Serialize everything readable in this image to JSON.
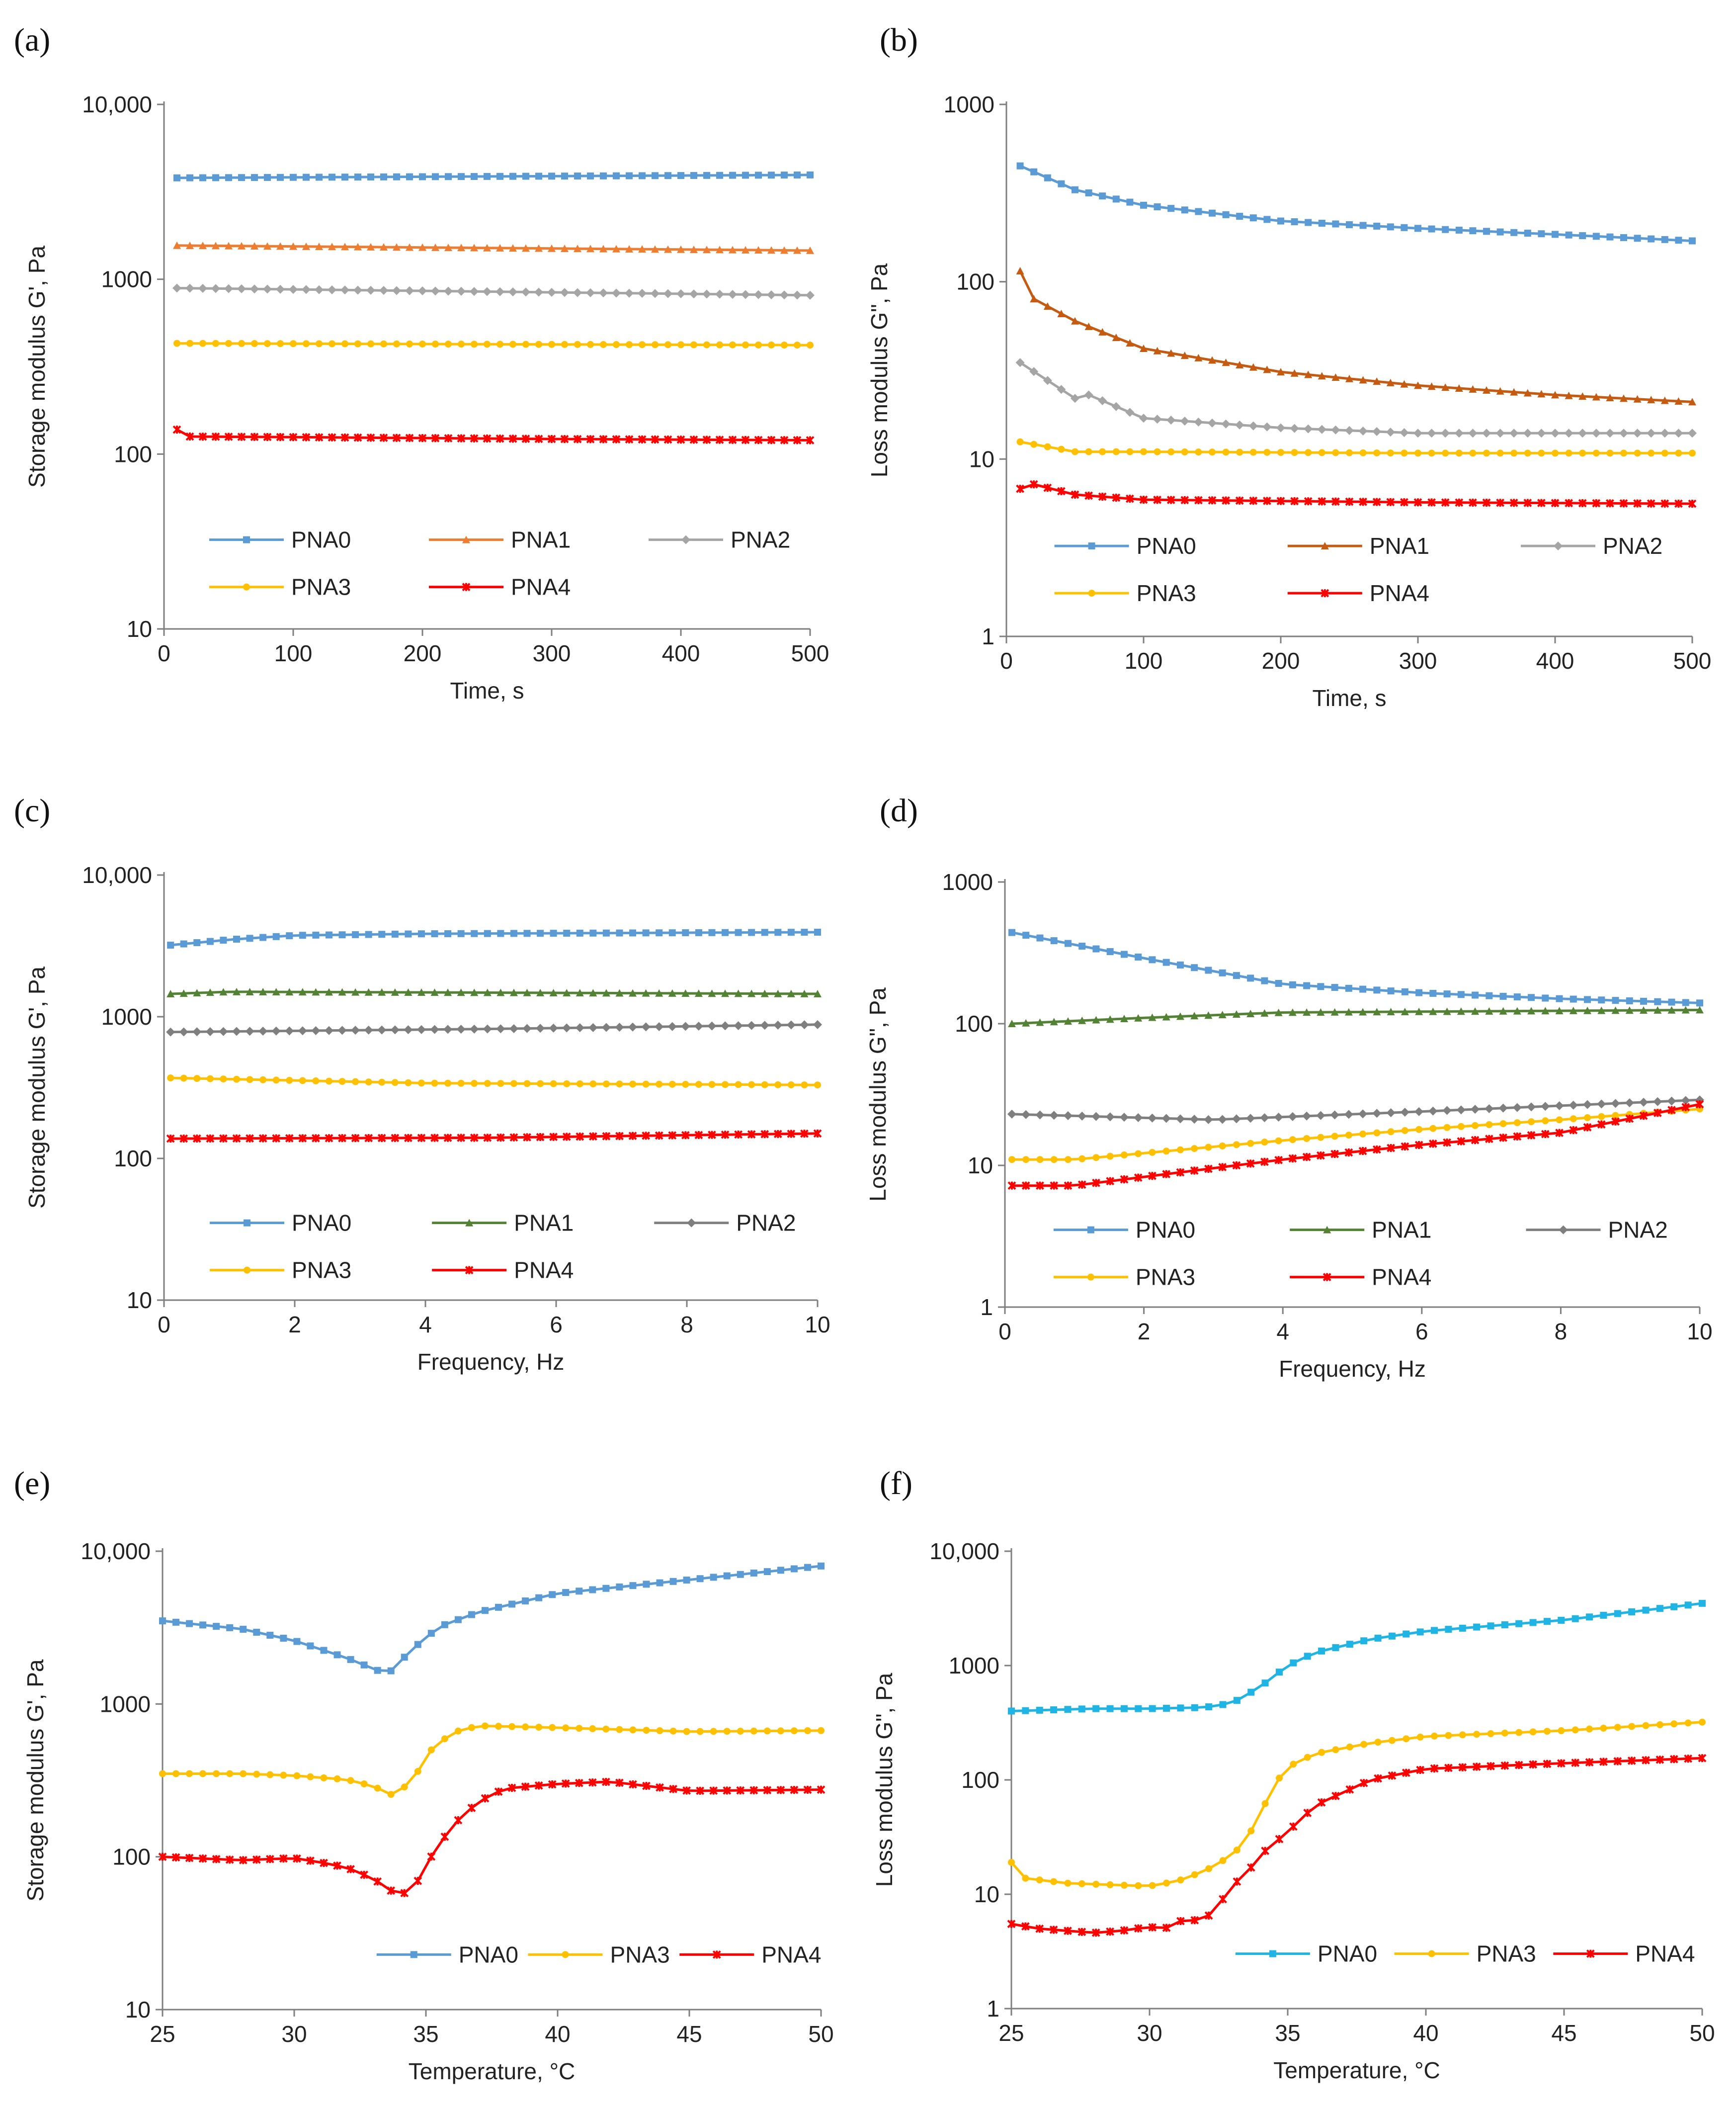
{
  "chart_data": [
    {
      "panel_label": "(a)",
      "type": "line",
      "title": "",
      "xlabel": "Time, s",
      "ylabel": "Storage modulus G', Pa",
      "xlim": [
        0,
        500
      ],
      "ylim": [
        10,
        10000
      ],
      "y_scale": "log",
      "x_ticks": [
        "0",
        "100",
        "200",
        "300",
        "400",
        "500"
      ],
      "y_ticks": [
        "10",
        "100",
        "1000",
        "10,000"
      ],
      "legend_position": "bottom",
      "series": [
        {
          "name": "PNA0",
          "color": "#5B9BD5",
          "marker": "square",
          "x": [
            10,
            500
          ],
          "values": [
            3800,
            3950
          ]
        },
        {
          "name": "PNA1",
          "color": "#ED7D31",
          "marker": "triangle",
          "x": [
            10,
            500
          ],
          "values": [
            1560,
            1460
          ]
        },
        {
          "name": "PNA2",
          "color": "#A5A5A5",
          "marker": "diamond",
          "x": [
            10,
            500
          ],
          "values": [
            890,
            810
          ]
        },
        {
          "name": "PNA3",
          "color": "#FFC000",
          "marker": "circle",
          "x": [
            10,
            500
          ],
          "values": [
            430,
            420
          ]
        },
        {
          "name": "PNA4",
          "color": "#FF0000",
          "marker": "star",
          "x": [
            10,
            20,
            100,
            300,
            500
          ],
          "values": [
            138,
            126,
            125,
            122,
            120
          ]
        }
      ]
    },
    {
      "panel_label": "(b)",
      "type": "line",
      "title": "",
      "xlabel": "Time, s",
      "ylabel": "Loss modulus G\", Pa",
      "xlim": [
        0,
        500
      ],
      "ylim": [
        1,
        1000
      ],
      "y_scale": "log",
      "x_ticks": [
        "0",
        "100",
        "200",
        "300",
        "400",
        "500"
      ],
      "y_ticks": [
        "1",
        "10",
        "100",
        "1000"
      ],
      "legend_position": "bottom",
      "series": [
        {
          "name": "PNA0",
          "color": "#5B9BD5",
          "marker": "square",
          "x": [
            10,
            50,
            100,
            200,
            300,
            400,
            500
          ],
          "values": [
            450,
            330,
            270,
            220,
            200,
            185,
            170
          ]
        },
        {
          "name": "PNA1",
          "color": "#C55A11",
          "marker": "triangle",
          "x": [
            10,
            20,
            50,
            100,
            200,
            300,
            400,
            500
          ],
          "values": [
            115,
            80,
            60,
            42,
            31,
            26,
            23,
            21
          ]
        },
        {
          "name": "PNA2",
          "color": "#A5A5A5",
          "marker": "diamond",
          "x": [
            10,
            50,
            60,
            100,
            200,
            300,
            500
          ],
          "values": [
            35,
            22,
            23,
            17,
            15,
            14,
            14
          ]
        },
        {
          "name": "PNA3",
          "color": "#FFC000",
          "marker": "circle",
          "x": [
            10,
            50,
            100,
            300,
            500
          ],
          "values": [
            12.5,
            11,
            11,
            10.8,
            10.8
          ]
        },
        {
          "name": "PNA4",
          "color": "#FF0000",
          "marker": "star",
          "x": [
            10,
            20,
            50,
            100,
            300,
            500
          ],
          "values": [
            6.8,
            7.2,
            6.3,
            5.9,
            5.7,
            5.6
          ]
        }
      ]
    },
    {
      "panel_label": "(c)",
      "type": "line",
      "title": "",
      "xlabel": "Frequency, Hz",
      "ylabel": "Storage modulus G', Pa",
      "xlim": [
        0,
        10
      ],
      "ylim": [
        10,
        10000
      ],
      "y_scale": "log",
      "x_ticks": [
        "0",
        "2",
        "4",
        "6",
        "8",
        "10"
      ],
      "y_ticks": [
        "10",
        "100",
        "1000",
        "10,000"
      ],
      "legend_position": "bottom",
      "series": [
        {
          "name": "PNA0",
          "color": "#5B9BD5",
          "marker": "square",
          "x": [
            0.1,
            1,
            2,
            4,
            10
          ],
          "values": [
            3200,
            3500,
            3750,
            3850,
            3950
          ]
        },
        {
          "name": "PNA1",
          "color": "#548235",
          "marker": "triangle",
          "x": [
            0.1,
            1,
            5,
            10
          ],
          "values": [
            1450,
            1500,
            1480,
            1450
          ]
        },
        {
          "name": "PNA2",
          "color": "#7F7F7F",
          "marker": "diamond",
          "x": [
            0.1,
            5,
            10
          ],
          "values": [
            780,
            820,
            880
          ]
        },
        {
          "name": "PNA3",
          "color": "#FFC000",
          "marker": "circle",
          "x": [
            0.1,
            4,
            10
          ],
          "values": [
            370,
            340,
            330
          ]
        },
        {
          "name": "PNA4",
          "color": "#FF0000",
          "marker": "star",
          "x": [
            0.1,
            5,
            10
          ],
          "values": [
            138,
            140,
            150
          ]
        }
      ]
    },
    {
      "panel_label": "(d)",
      "type": "line",
      "title": "",
      "xlabel": "Frequency, Hz",
      "ylabel": "Loss modulus G\", Pa",
      "xlim": [
        0,
        10
      ],
      "ylim": [
        1,
        1000
      ],
      "y_scale": "log",
      "x_ticks": [
        "0",
        "2",
        "4",
        "6",
        "8",
        "10"
      ],
      "y_ticks": [
        "1",
        "10",
        "100",
        "1000"
      ],
      "legend_position": "bottom",
      "series": [
        {
          "name": "PNA0",
          "color": "#5B9BD5",
          "marker": "square",
          "x": [
            0.1,
            2,
            4,
            6,
            8,
            10
          ],
          "values": [
            440,
            290,
            190,
            165,
            150,
            140
          ]
        },
        {
          "name": "PNA1",
          "color": "#548235",
          "marker": "triangle",
          "x": [
            0.1,
            2,
            4,
            10
          ],
          "values": [
            100,
            110,
            120,
            125
          ]
        },
        {
          "name": "PNA2",
          "color": "#7F7F7F",
          "marker": "diamond",
          "x": [
            0.1,
            3,
            6,
            10
          ],
          "values": [
            23,
            21,
            24,
            29
          ]
        },
        {
          "name": "PNA3",
          "color": "#FFC000",
          "marker": "circle",
          "x": [
            0.1,
            1,
            4,
            6,
            8,
            10
          ],
          "values": [
            11,
            11,
            15,
            18,
            21,
            25
          ]
        },
        {
          "name": "PNA4",
          "color": "#FF0000",
          "marker": "star",
          "x": [
            0.1,
            1,
            4,
            6,
            8,
            10
          ],
          "values": [
            7.2,
            7.2,
            11,
            14,
            17,
            27
          ]
        }
      ]
    },
    {
      "panel_label": "(e)",
      "type": "line",
      "title": "",
      "xlabel": "Temperature, °C",
      "ylabel": "Storage modulus G', Pa",
      "xlim": [
        25,
        50
      ],
      "ylim": [
        10,
        10000
      ],
      "y_scale": "log",
      "x_ticks": [
        "25",
        "30",
        "35",
        "40",
        "45",
        "50"
      ],
      "y_ticks": [
        "10",
        "100",
        "1000",
        "10,000"
      ],
      "legend_position": "bottom-right",
      "series": [
        {
          "name": "PNA0",
          "color": "#5B9BD5",
          "marker": "square",
          "x": [
            25,
            28,
            30,
            32,
            33.2,
            33.6,
            34.5,
            35.5,
            37,
            40,
            45,
            50
          ],
          "values": [
            3500,
            3100,
            2600,
            2000,
            1650,
            1600,
            2300,
            3200,
            4000,
            5300,
            6500,
            8000
          ]
        },
        {
          "name": "PNA3",
          "color": "#FFC000",
          "marker": "circle",
          "x": [
            25,
            28,
            30,
            32,
            33,
            33.8,
            34.5,
            35.2,
            36,
            37,
            40,
            45,
            50
          ],
          "values": [
            350,
            350,
            340,
            320,
            290,
            250,
            320,
            500,
            650,
            720,
            700,
            660,
            670
          ]
        },
        {
          "name": "PNA4",
          "color": "#FF0000",
          "marker": "star",
          "x": [
            25,
            28,
            30,
            31,
            32,
            33,
            34,
            34.6,
            35.2,
            36,
            37,
            38,
            40,
            42,
            45,
            50
          ],
          "values": [
            100,
            95,
            98,
            92,
            85,
            72,
            55,
            65,
            100,
            160,
            230,
            280,
            300,
            310,
            270,
            275
          ]
        }
      ]
    },
    {
      "panel_label": "(f)",
      "type": "line",
      "title": "",
      "xlabel": "Temperature, °C",
      "ylabel": "Loss modulus G\", Pa",
      "xlim": [
        25,
        50
      ],
      "ylim": [
        1,
        10000
      ],
      "y_scale": "log",
      "x_ticks": [
        "25",
        "30",
        "35",
        "40",
        "45",
        "50"
      ],
      "y_ticks": [
        "1",
        "10",
        "100",
        "1000",
        "10,000"
      ],
      "legend_position": "bottom-right",
      "series": [
        {
          "name": "PNA0",
          "color": "#1FB4E4",
          "marker": "square",
          "x": [
            25,
            28,
            30,
            32,
            33,
            34,
            35,
            36,
            38,
            40,
            45,
            50
          ],
          "values": [
            400,
            420,
            420,
            430,
            470,
            650,
            1000,
            1300,
            1700,
            2000,
            2500,
            3500
          ]
        },
        {
          "name": "PNA3",
          "color": "#FFC000",
          "marker": "circle",
          "x": [
            25,
            25.3,
            27,
            29,
            30,
            31,
            32,
            33,
            33.5,
            34,
            34.5,
            35,
            36,
            38,
            40,
            45,
            50
          ],
          "values": [
            19,
            14,
            12.5,
            12,
            11.8,
            13,
            16,
            22,
            30,
            50,
            90,
            130,
            170,
            210,
            240,
            270,
            320
          ]
        },
        {
          "name": "PNA4",
          "color": "#FF0000",
          "marker": "star",
          "x": [
            25,
            26,
            28,
            29,
            30,
            30.5,
            31,
            32,
            32.5,
            33,
            33.5,
            34,
            35,
            36,
            38,
            40,
            45,
            50
          ],
          "values": [
            5.5,
            5,
            4.6,
            4.8,
            5.2,
            4.9,
            5.8,
            6,
            8,
            12,
            15,
            22,
            35,
            60,
            100,
            125,
            140,
            155
          ]
        }
      ]
    }
  ]
}
